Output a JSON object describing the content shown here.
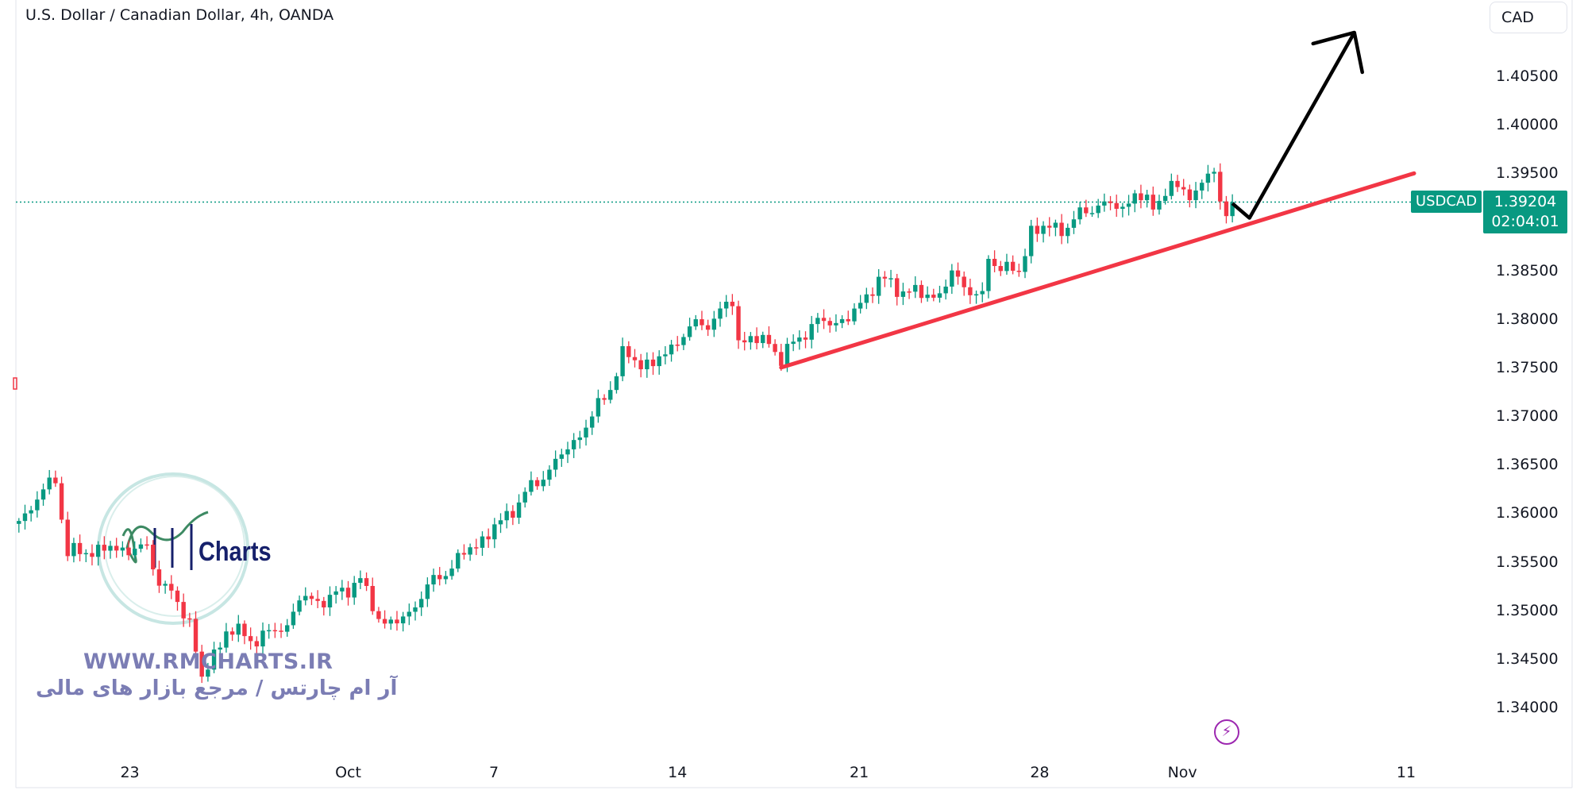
{
  "header": {
    "title": "U.S. Dollar / Canadian Dollar, 4h, OANDA",
    "currency_button": "CAD"
  },
  "last_price": {
    "symbol": "USDCAD",
    "price": "1.39204",
    "countdown": "02:04:01"
  },
  "watermark": {
    "brand": "Charts",
    "url": "WWW.RMCHARTS.IR",
    "tagline": "آر ام چارتس / مرجع بازار های مالی"
  },
  "colors": {
    "up": "#089981",
    "down": "#f23645",
    "trendline": "#f23645",
    "arrow": "#000000",
    "price_line": "#089981"
  },
  "chart_data": {
    "type": "candlestick",
    "title": "U.S. Dollar / Canadian Dollar, 4h, OANDA",
    "ylim": [
      1.3375,
      1.4125
    ],
    "y_ticks": [
      "1.40500",
      "1.40000",
      "1.39500",
      "1.39000",
      "1.38500",
      "1.38000",
      "1.37500",
      "1.37000",
      "1.36500",
      "1.36000",
      "1.35500",
      "1.35000",
      "1.34500",
      "1.34000"
    ],
    "x_ticks": [
      {
        "label": "23",
        "bar": 18.2
      },
      {
        "label": "Oct",
        "bar": 54
      },
      {
        "label": "7",
        "bar": 77.9
      },
      {
        "label": "14",
        "bar": 108
      },
      {
        "label": "21",
        "bar": 137.8
      },
      {
        "label": "28",
        "bar": 167.4
      },
      {
        "label": "Nov",
        "bar": 190.8
      },
      {
        "label": "11",
        "bar": 227.5
      }
    ],
    "bar_count": 200,
    "close_path": [
      [
        0,
        1.3592
      ],
      [
        6,
        1.3637
      ],
      [
        8,
        1.3558
      ],
      [
        14,
        1.3563
      ],
      [
        21,
        1.3563
      ],
      [
        23,
        1.3532
      ],
      [
        28,
        1.349
      ],
      [
        29,
        1.3459
      ],
      [
        30,
        1.3428
      ],
      [
        34,
        1.348
      ],
      [
        39,
        1.347
      ],
      [
        44,
        1.3485
      ],
      [
        46,
        1.3511
      ],
      [
        51,
        1.3511
      ],
      [
        56,
        1.3532
      ],
      [
        59,
        1.349
      ],
      [
        63,
        1.3488
      ],
      [
        66,
        1.3517
      ],
      [
        73,
        1.3558
      ],
      [
        78,
        1.3584
      ],
      [
        84,
        1.3626
      ],
      [
        88,
        1.3652
      ],
      [
        93,
        1.3689
      ],
      [
        97,
        1.3731
      ],
      [
        99,
        1.3762
      ],
      [
        104,
        1.3752
      ],
      [
        108,
        1.3778
      ],
      [
        111,
        1.3794
      ],
      [
        114,
        1.3799
      ],
      [
        117,
        1.382
      ],
      [
        118,
        1.3778
      ],
      [
        123,
        1.3778
      ],
      [
        125,
        1.3757
      ],
      [
        128,
        1.3783
      ],
      [
        131,
        1.3796
      ],
      [
        136,
        1.3799
      ],
      [
        141,
        1.3841
      ],
      [
        144,
        1.3832
      ],
      [
        148,
        1.3825
      ],
      [
        151,
        1.3825
      ],
      [
        153,
        1.3846
      ],
      [
        158,
        1.382
      ],
      [
        159,
        1.3862
      ],
      [
        164,
        1.3846
      ],
      [
        166,
        1.3893
      ],
      [
        171,
        1.3893
      ],
      [
        177,
        1.3919
      ],
      [
        181,
        1.3914
      ],
      [
        183,
        1.393
      ],
      [
        186,
        1.3914
      ],
      [
        188,
        1.3935
      ],
      [
        193,
        1.393
      ],
      [
        194,
        1.394
      ],
      [
        196,
        1.3953
      ],
      [
        197,
        1.3919
      ],
      [
        198,
        1.3909
      ],
      [
        199,
        1.392
      ]
    ],
    "current_price": 1.39204,
    "drawings": {
      "trendline": {
        "from": [
          125,
          1.375
        ],
        "to": [
          228.8,
          1.395
        ]
      },
      "arrow": {
        "points": [
          [
            199,
            1.3919
          ],
          [
            201.8,
            1.3904
          ],
          [
            219.0,
            1.4095
          ]
        ]
      }
    }
  }
}
